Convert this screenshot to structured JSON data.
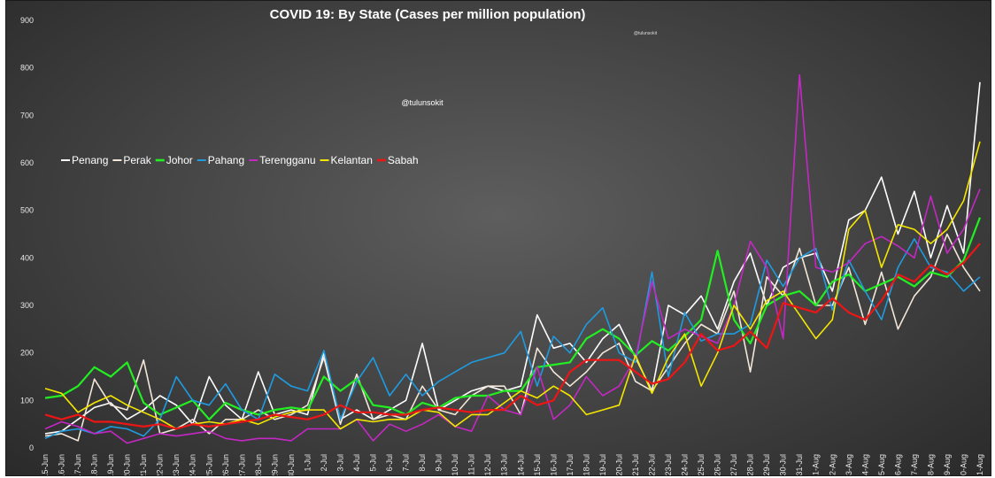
{
  "chart_data": {
    "type": "line",
    "title": "COVID 19: By State  (Cases per million population)",
    "watermark": "@tulunsokit",
    "watermark_small": "@tulunsokit",
    "ylim": [
      0,
      900
    ],
    "yticks": [
      "0",
      "100",
      "200",
      "300",
      "400",
      "500",
      "600",
      "700",
      "800",
      "900"
    ],
    "legend_position": "left-middle",
    "categories": [
      "15-Jun",
      "16-Jun",
      "17-Jun",
      "18-Jun",
      "19-Jun",
      "20-Jun",
      "21-Jun",
      "22-Jun",
      "23-Jun",
      "24-Jun",
      "25-Jun",
      "26-Jun",
      "27-Jun",
      "28-Jun",
      "29-Jun",
      "30-Jun",
      "1-Jul",
      "2-Jul",
      "3-Jul",
      "4-Jul",
      "5-Jul",
      "6-Jul",
      "7-Jul",
      "8-Jul",
      "9-Jul",
      "10-Jul",
      "11-Jul",
      "12-Jul",
      "13-Jul",
      "14-Jul",
      "15-Jul",
      "16-Jul",
      "17-Jul",
      "18-Jul",
      "19-Jul",
      "20-Jul",
      "21-Jul",
      "22-Jul",
      "23-Jul",
      "24-Jul",
      "25-Jul",
      "26-Jul",
      "27-Jul",
      "28-Jul",
      "29-Jul",
      "30-Jul",
      "31-Jul",
      "1-Aug",
      "2-Aug",
      "3-Aug",
      "4-Aug",
      "5-Aug",
      "6-Aug",
      "7-Aug",
      "8-Aug",
      "9-Aug",
      "10-Aug",
      "11-Aug"
    ],
    "series": [
      {
        "name": "Penang",
        "color": "#ffffff",
        "width": 1.6,
        "values": [
          30,
          35,
          60,
          85,
          95,
          60,
          80,
          110,
          90,
          50,
          150,
          90,
          60,
          160,
          70,
          80,
          70,
          200,
          60,
          80,
          60,
          80,
          100,
          220,
          80,
          100,
          120,
          130,
          120,
          130,
          280,
          210,
          220,
          180,
          230,
          260,
          190,
          120,
          300,
          280,
          320,
          250,
          350,
          410,
          300,
          380,
          400,
          410,
          330,
          480,
          500,
          570,
          450,
          540,
          400,
          510,
          410,
          770
        ]
      },
      {
        "name": "Perak",
        "color": "#f2e6d8",
        "width": 1.6,
        "values": [
          25,
          30,
          15,
          145,
          90,
          80,
          185,
          30,
          40,
          60,
          30,
          60,
          60,
          80,
          60,
          70,
          90,
          190,
          50,
          155,
          60,
          70,
          60,
          130,
          80,
          70,
          110,
          130,
          130,
          70,
          210,
          160,
          130,
          160,
          200,
          220,
          140,
          120,
          170,
          220,
          260,
          240,
          330,
          160,
          360,
          320,
          420,
          300,
          300,
          380,
          260,
          370,
          250,
          320,
          360,
          450,
          380,
          330
        ]
      },
      {
        "name": "Johor",
        "color": "#22ee22",
        "width": 2.2,
        "values": [
          105,
          110,
          130,
          170,
          150,
          180,
          95,
          70,
          85,
          100,
          60,
          95,
          80,
          70,
          80,
          85,
          80,
          150,
          120,
          145,
          90,
          85,
          70,
          95,
          85,
          105,
          110,
          110,
          120,
          120,
          170,
          175,
          180,
          230,
          250,
          230,
          195,
          225,
          205,
          235,
          270,
          415,
          270,
          220,
          300,
          320,
          330,
          300,
          350,
          365,
          330,
          345,
          360,
          340,
          370,
          360,
          395,
          485
        ]
      },
      {
        "name": "Pahang",
        "color": "#1f9be0",
        "width": 1.6,
        "values": [
          20,
          35,
          40,
          30,
          45,
          40,
          25,
          60,
          150,
          100,
          90,
          135,
          80,
          60,
          155,
          130,
          120,
          205,
          60,
          140,
          190,
          110,
          155,
          110,
          140,
          160,
          180,
          190,
          200,
          245,
          130,
          235,
          200,
          260,
          295,
          200,
          180,
          370,
          150,
          285,
          225,
          240,
          240,
          260,
          395,
          340,
          400,
          420,
          290,
          395,
          330,
          270,
          380,
          440,
          380,
          370,
          330,
          360
        ]
      },
      {
        "name": "Terengganu",
        "color": "#c428c4",
        "width": 1.6,
        "values": [
          40,
          55,
          45,
          30,
          35,
          10,
          20,
          30,
          25,
          30,
          35,
          20,
          15,
          20,
          20,
          15,
          40,
          40,
          40,
          60,
          15,
          50,
          35,
          50,
          70,
          45,
          35,
          110,
          80,
          70,
          170,
          60,
          90,
          150,
          110,
          130,
          190,
          350,
          230,
          250,
          235,
          220,
          300,
          435,
          380,
          230,
          785,
          380,
          370,
          390,
          430,
          445,
          425,
          400,
          530,
          410,
          460,
          545
        ]
      },
      {
        "name": "Kelantan",
        "color": "#f5e600",
        "width": 1.6,
        "values": [
          125,
          115,
          75,
          95,
          110,
          90,
          75,
          60,
          40,
          50,
          55,
          50,
          60,
          50,
          65,
          75,
          80,
          80,
          40,
          60,
          55,
          60,
          60,
          80,
          75,
          45,
          70,
          70,
          95,
          120,
          105,
          130,
          110,
          70,
          80,
          90,
          195,
          115,
          190,
          240,
          130,
          200,
          300,
          250,
          310,
          330,
          280,
          230,
          270,
          460,
          500,
          380,
          470,
          460,
          430,
          460,
          520,
          645
        ]
      },
      {
        "name": "Sabah",
        "color": "#ee1515",
        "width": 2.2,
        "values": [
          70,
          60,
          70,
          55,
          55,
          50,
          45,
          50,
          40,
          50,
          45,
          50,
          55,
          60,
          70,
          65,
          60,
          70,
          90,
          75,
          75,
          70,
          70,
          80,
          85,
          80,
          75,
          80,
          80,
          110,
          90,
          100,
          160,
          185,
          185,
          185,
          160,
          135,
          145,
          180,
          240,
          205,
          215,
          245,
          210,
          305,
          295,
          285,
          315,
          285,
          270,
          310,
          365,
          350,
          385,
          365,
          390,
          430
        ]
      }
    ]
  }
}
